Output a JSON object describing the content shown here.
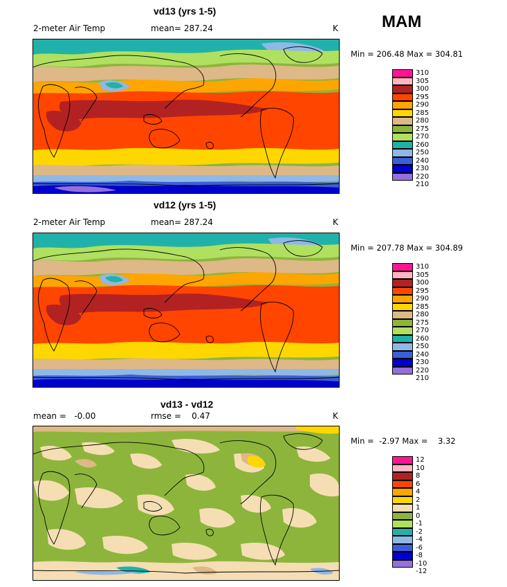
{
  "season": "MAM",
  "colors": {
    "temp": [
      "#9370db",
      "#0000cd",
      "#3a5fd9",
      "#8fb8e6",
      "#20b2aa",
      "#b0e060",
      "#8db53c",
      "#deb887",
      "#ffd700",
      "#ffa500",
      "#ff4500",
      "#b22222",
      "#ffb6c1",
      "#ff1493"
    ],
    "diff": [
      "#9370db",
      "#0000cd",
      "#3a5fd9",
      "#8fb8e6",
      "#20b2aa",
      "#b0e060",
      "#8db53c",
      "#f5deb3",
      "#ffd700",
      "#ffa500",
      "#ff4500",
      "#b22222",
      "#ffb6c1",
      "#ff1493"
    ]
  },
  "panels": [
    {
      "title": "vd13 (yrs 1-5)",
      "left_label": "2-meter Air Temp",
      "center_label": "mean=  287.24",
      "unit": "K",
      "minmax": "Min = 206.48 Max = 304.81",
      "legend_labels": [
        "310",
        "305",
        "300",
        "295",
        "290",
        "285",
        "280",
        "275",
        "270",
        "260",
        "250",
        "240",
        "230",
        "220",
        "210"
      ],
      "scheme": "temp"
    },
    {
      "title": "vd12 (yrs 1-5)",
      "left_label": "2-meter Air Temp",
      "center_label": "mean=  287.24",
      "unit": "K",
      "minmax": "Min = 207.78 Max = 304.89",
      "legend_labels": [
        "310",
        "305",
        "300",
        "295",
        "290",
        "285",
        "280",
        "275",
        "270",
        "260",
        "250",
        "240",
        "230",
        "220",
        "210"
      ],
      "scheme": "temp"
    },
    {
      "title": "vd13 - vd12",
      "left_label": "mean =   -0.00",
      "center_label": "rmse =    0.47",
      "unit": "K",
      "minmax": "Min =  -2.97 Max =    3.32",
      "legend_labels": [
        "12",
        "10",
        "8",
        "6",
        "4",
        "2",
        "1",
        "0",
        "-1",
        "-2",
        "-4",
        "-6",
        "-8",
        "-10",
        "-12"
      ],
      "scheme": "diff"
    }
  ]
}
